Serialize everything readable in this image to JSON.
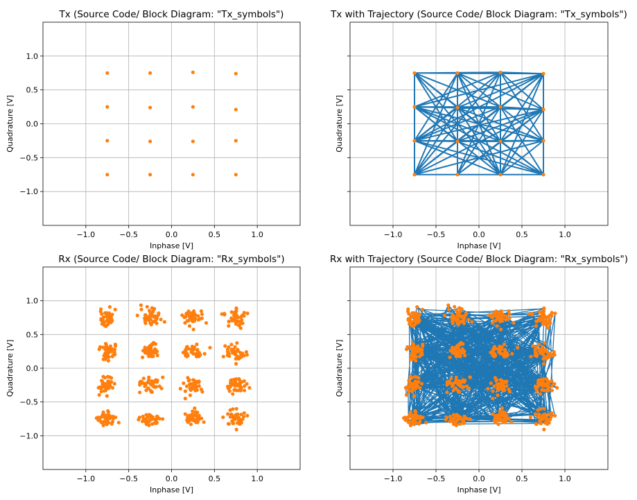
{
  "chart_data": [
    {
      "type": "scatter",
      "title": "Tx (Source Code/ Block Diagram: \"Tx_symbols\")",
      "xlabel": "Inphase [V]",
      "ylabel": "Quadrature [V]",
      "xlim": [
        -1.5,
        1.5
      ],
      "ylim": [
        -1.5,
        1.5
      ],
      "xticks": [
        "−1.0",
        "−0.5",
        "0.0",
        "0.5",
        "1.0"
      ],
      "yticks": [
        "1.0",
        "0.5",
        "0.0",
        "−0.5",
        "−1.0"
      ],
      "show_yticklabels": true,
      "grid": true,
      "trajectory": false,
      "points": [
        [
          -0.75,
          0.75
        ],
        [
          -0.25,
          0.75
        ],
        [
          0.25,
          0.76
        ],
        [
          0.75,
          0.74
        ],
        [
          -0.75,
          0.25
        ],
        [
          -0.25,
          0.24
        ],
        [
          0.25,
          0.25
        ],
        [
          0.75,
          0.21
        ],
        [
          -0.75,
          -0.25
        ],
        [
          -0.25,
          -0.26
        ],
        [
          0.25,
          -0.26
        ],
        [
          0.75,
          -0.25
        ],
        [
          -0.75,
          -0.75
        ],
        [
          -0.25,
          -0.75
        ],
        [
          0.25,
          -0.75
        ],
        [
          0.75,
          -0.75
        ]
      ],
      "point_color": "#ff7f0e"
    },
    {
      "type": "scatter",
      "title": "Tx with Trajectory (Source Code/ Block Diagram: \"Tx_symbols\")",
      "xlabel": "Inphase [V]",
      "ylabel": "Quadrature [V]",
      "xlim": [
        -1.5,
        1.5
      ],
      "ylim": [
        -1.5,
        1.5
      ],
      "xticks": [
        "−1.0",
        "−0.5",
        "0.0",
        "0.5",
        "1.0"
      ],
      "yticks": [],
      "show_yticklabels": false,
      "grid": true,
      "trajectory": true,
      "points": [
        [
          -0.75,
          0.75
        ],
        [
          -0.25,
          0.75
        ],
        [
          0.25,
          0.76
        ],
        [
          0.75,
          0.74
        ],
        [
          -0.75,
          0.25
        ],
        [
          -0.25,
          0.24
        ],
        [
          0.25,
          0.25
        ],
        [
          0.75,
          0.21
        ],
        [
          -0.75,
          -0.25
        ],
        [
          -0.25,
          -0.26
        ],
        [
          0.25,
          -0.26
        ],
        [
          0.75,
          -0.25
        ],
        [
          -0.75,
          -0.75
        ],
        [
          -0.25,
          -0.75
        ],
        [
          0.25,
          -0.75
        ],
        [
          0.75,
          -0.75
        ]
      ],
      "line_color": "#1f77b4",
      "point_color": "#ff7f0e"
    },
    {
      "type": "scatter",
      "title": "Rx (Source Code/ Block Diagram: \"Rx_symbols\")",
      "xlabel": "Inphase [V]",
      "ylabel": "Quadrature [V]",
      "xlim": [
        -1.5,
        1.5
      ],
      "ylim": [
        -1.5,
        1.5
      ],
      "xticks": [
        "−1.0",
        "−0.5",
        "0.0",
        "0.5",
        "1.0"
      ],
      "yticks": [
        "1.0",
        "0.5",
        "0.0",
        "−0.5",
        "−1.0"
      ],
      "show_yticklabels": true,
      "grid": true,
      "trajectory": false,
      "centers": [
        [
          -0.75,
          0.75
        ],
        [
          -0.25,
          0.75
        ],
        [
          0.25,
          0.75
        ],
        [
          0.75,
          0.74
        ],
        [
          -0.75,
          0.25
        ],
        [
          -0.25,
          0.25
        ],
        [
          0.25,
          0.25
        ],
        [
          0.75,
          0.22
        ],
        [
          -0.75,
          -0.25
        ],
        [
          -0.25,
          -0.25
        ],
        [
          0.25,
          -0.25
        ],
        [
          0.75,
          -0.25
        ],
        [
          -0.75,
          -0.75
        ],
        [
          -0.25,
          -0.76
        ],
        [
          0.25,
          -0.75
        ],
        [
          0.75,
          -0.75
        ]
      ],
      "spread": 0.06,
      "points_per_cluster": 40,
      "point_color": "#ff7f0e"
    },
    {
      "type": "scatter",
      "title": "Rx with Trajectory (Source Code/ Block Diagram: \"Rx_symbols\")",
      "xlabel": "Inphase [V]",
      "ylabel": "Quadrature [V]",
      "xlim": [
        -1.5,
        1.5
      ],
      "ylim": [
        -1.5,
        1.5
      ],
      "xticks": [
        "−1.0",
        "−0.5",
        "0.0",
        "0.5",
        "1.0"
      ],
      "yticks": [],
      "show_yticklabels": false,
      "grid": true,
      "trajectory": true,
      "centers": [
        [
          -0.75,
          0.75
        ],
        [
          -0.25,
          0.75
        ],
        [
          0.25,
          0.75
        ],
        [
          0.75,
          0.74
        ],
        [
          -0.75,
          0.25
        ],
        [
          -0.25,
          0.25
        ],
        [
          0.25,
          0.25
        ],
        [
          0.75,
          0.22
        ],
        [
          -0.75,
          -0.25
        ],
        [
          -0.25,
          -0.25
        ],
        [
          0.25,
          -0.25
        ],
        [
          0.75,
          -0.25
        ],
        [
          -0.75,
          -0.75
        ],
        [
          -0.25,
          -0.76
        ],
        [
          0.25,
          -0.75
        ],
        [
          0.75,
          -0.75
        ]
      ],
      "spread": 0.06,
      "points_per_cluster": 40,
      "line_color": "#1f77b4",
      "point_color": "#ff7f0e"
    }
  ]
}
